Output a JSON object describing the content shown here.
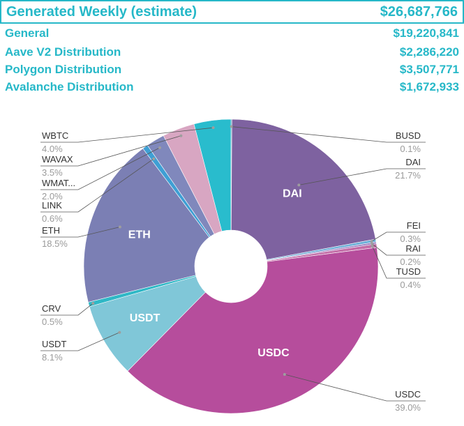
{
  "summary": {
    "total_label": "Generated Weekly (estimate)",
    "total_value": "$26,687,766",
    "rows": [
      {
        "label": "General",
        "value": "$19,220,841"
      },
      {
        "label": "Aave V2 Distribution",
        "value": "$2,286,220"
      },
      {
        "label": "Polygon Distribution",
        "value": "$3,507,771"
      },
      {
        "label": "Avalanche Distribution",
        "value": "$1,672,933"
      }
    ]
  },
  "chart_data": {
    "type": "pie",
    "donut": true,
    "start": "top, clockwise",
    "slices": [
      {
        "label": "BUSD",
        "value": 0.1,
        "pct_text": "0.1%",
        "color": "#2e8fb3",
        "inside": ""
      },
      {
        "label": "DAI",
        "value": 21.7,
        "pct_text": "21.7%",
        "color": "#7e62a0",
        "inside": "DAI"
      },
      {
        "label": "FEI",
        "value": 0.3,
        "pct_text": "0.3%",
        "color": "#6bb0d8",
        "inside": ""
      },
      {
        "label": "RAI",
        "value": 0.2,
        "pct_text": "0.2%",
        "color": "#9b7fc0",
        "inside": ""
      },
      {
        "label": "TUSD",
        "value": 0.4,
        "pct_text": "0.4%",
        "color": "#c46ea8",
        "inside": ""
      },
      {
        "label": "USDC",
        "value": 39.0,
        "pct_text": "39.0%",
        "color": "#b64d9c",
        "inside": "USDC"
      },
      {
        "label": "USDT",
        "value": 8.1,
        "pct_text": "8.1%",
        "color": "#80c7d8",
        "inside": "USDT"
      },
      {
        "label": "CRV",
        "value": 0.5,
        "pct_text": "0.5%",
        "color": "#2fb8c6",
        "inside": ""
      },
      {
        "label": "ETH",
        "value": 18.5,
        "pct_text": "18.5%",
        "color": "#7b7fb4",
        "inside": "ETH"
      },
      {
        "label": "LINK",
        "value": 0.6,
        "pct_text": "0.6%",
        "color": "#3f9fd4",
        "inside": ""
      },
      {
        "label": "WMAT...",
        "value": 2.0,
        "pct_text": "2.0%",
        "color": "#8088bc",
        "inside": ""
      },
      {
        "label": "WAVAX",
        "value": 3.5,
        "pct_text": "3.5%",
        "color": "#d8a6c2",
        "inside": ""
      },
      {
        "label": "WBTC",
        "value": 4.0,
        "pct_text": "4.0%",
        "color": "#29bccd",
        "inside": ""
      }
    ]
  }
}
